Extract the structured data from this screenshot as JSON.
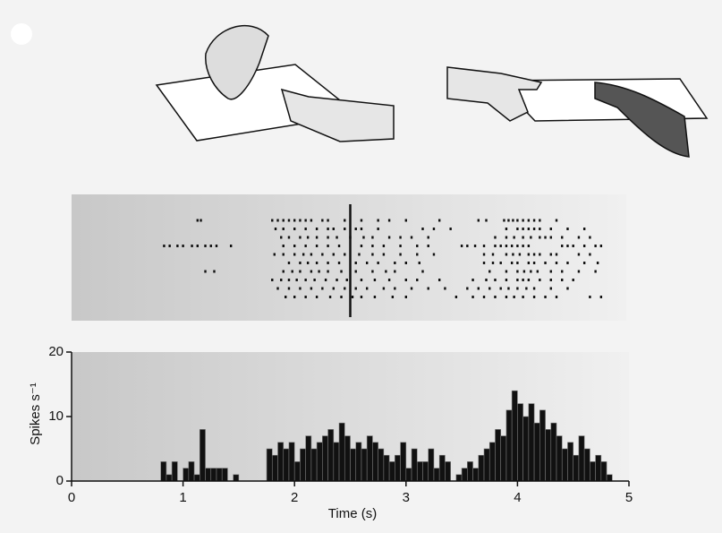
{
  "chart_data": [
    {
      "type": "raster",
      "xlim": [
        0,
        5
      ],
      "marker": 2.5,
      "trials": [
        [
          1.13,
          1.16,
          1.8,
          1.85,
          1.9,
          1.95,
          2.0,
          2.05,
          2.1,
          2.15,
          2.25,
          2.3,
          2.45,
          2.6,
          2.75,
          2.85,
          3.0,
          3.3,
          3.65,
          3.72,
          3.88,
          3.92,
          3.96,
          4.0,
          4.05,
          4.1,
          4.15,
          4.2,
          4.35
        ],
        [
          1.83,
          1.9,
          2.0,
          2.1,
          2.2,
          2.3,
          2.35,
          2.45,
          2.55,
          2.6,
          2.75,
          3.15,
          3.25,
          3.4,
          3.9,
          4.0,
          4.05,
          4.1,
          4.15,
          4.2,
          4.3,
          4.45,
          4.6
        ],
        [
          1.88,
          1.95,
          2.05,
          2.12,
          2.2,
          2.3,
          2.38,
          2.5,
          2.62,
          2.7,
          2.85,
          2.95,
          3.05,
          3.2,
          3.8,
          3.9,
          3.97,
          4.05,
          4.12,
          4.2,
          4.25,
          4.3,
          4.4,
          4.55,
          4.65
        ],
        [
          0.83,
          0.88,
          0.95,
          1.0,
          1.08,
          1.13,
          1.2,
          1.25,
          1.3,
          1.43,
          1.9,
          2.0,
          2.1,
          2.2,
          2.3,
          2.4,
          2.6,
          2.7,
          2.8,
          2.95,
          3.1,
          3.2,
          3.5,
          3.55,
          3.62,
          3.7,
          3.8,
          3.85,
          3.9,
          3.95,
          4.0,
          4.05,
          4.1,
          4.4,
          4.45,
          4.5,
          4.6,
          4.7,
          4.75
        ],
        [
          1.82,
          1.9,
          2.0,
          2.08,
          2.15,
          2.25,
          2.35,
          2.45,
          2.58,
          2.7,
          2.8,
          2.95,
          3.1,
          3.25,
          3.7,
          3.78,
          3.9,
          3.96,
          4.02,
          4.1,
          4.15,
          4.2,
          4.3,
          4.35,
          4.55,
          4.65
        ],
        [
          1.95,
          2.05,
          2.12,
          2.2,
          2.3,
          2.4,
          2.55,
          2.65,
          2.75,
          2.9,
          3.0,
          3.12,
          3.7,
          3.78,
          3.85,
          3.95,
          4.0,
          4.1,
          4.15,
          4.25,
          4.35,
          4.45,
          4.6,
          4.72
        ],
        [
          1.2,
          1.28,
          1.9,
          1.98,
          2.05,
          2.15,
          2.22,
          2.3,
          2.42,
          2.55,
          2.7,
          2.82,
          2.9,
          3.15,
          3.75,
          3.9,
          4.0,
          4.06,
          4.12,
          4.18,
          4.3,
          4.4,
          4.55,
          4.7
        ],
        [
          1.8,
          1.88,
          1.95,
          2.02,
          2.1,
          2.18,
          2.28,
          2.38,
          2.47,
          2.6,
          2.72,
          2.85,
          3.0,
          3.1,
          3.3,
          3.6,
          3.72,
          3.8,
          3.9,
          4.0,
          4.05,
          4.1,
          4.2,
          4.3,
          4.4,
          4.5
        ],
        [
          1.85,
          1.95,
          2.05,
          2.15,
          2.25,
          2.35,
          2.45,
          2.55,
          2.65,
          2.8,
          2.9,
          3.05,
          3.2,
          3.35,
          3.55,
          3.65,
          3.75,
          3.85,
          3.92,
          4.0,
          4.08,
          4.15,
          4.3,
          4.45
        ],
        [
          1.92,
          2.0,
          2.1,
          2.2,
          2.32,
          2.42,
          2.52,
          2.6,
          2.72,
          2.88,
          3.0,
          3.45,
          3.6,
          3.7,
          3.8,
          3.9,
          3.97,
          4.05,
          4.15,
          4.25,
          4.35,
          4.65,
          4.75
        ]
      ]
    },
    {
      "type": "histogram",
      "xlabel": "Time (s)",
      "ylabel": "Spikes s⁻¹",
      "xlim": [
        0,
        5
      ],
      "xticks": [
        0,
        1,
        2,
        3,
        4,
        5
      ],
      "ylim": [
        0,
        20
      ],
      "yticks": [
        0,
        10,
        20
      ],
      "color": "#111111",
      "bins": [
        0.8,
        0.85,
        0.9,
        0.95,
        1.0,
        1.05,
        1.1,
        1.15,
        1.2,
        1.25,
        1.3,
        1.35,
        1.4,
        1.45,
        1.5,
        1.55,
        1.6,
        1.65,
        1.7,
        1.75,
        1.8,
        1.85,
        1.9,
        1.95,
        2.0,
        2.05,
        2.1,
        2.15,
        2.2,
        2.25,
        2.3,
        2.35,
        2.4,
        2.45,
        2.5,
        2.55,
        2.6,
        2.65,
        2.7,
        2.75,
        2.8,
        2.85,
        2.9,
        2.95,
        3.0,
        3.05,
        3.1,
        3.15,
        3.2,
        3.25,
        3.3,
        3.35,
        3.4,
        3.45,
        3.5,
        3.55,
        3.6,
        3.65,
        3.7,
        3.75,
        3.8,
        3.85,
        3.9,
        3.95,
        4.0,
        4.05,
        4.1,
        4.15,
        4.2,
        4.25,
        4.3,
        4.35,
        4.4,
        4.45,
        4.5,
        4.55,
        4.6,
        4.65,
        4.7,
        4.75,
        4.8,
        4.85
      ],
      "values": [
        3,
        1,
        3,
        0,
        2,
        3,
        1,
        8,
        2,
        2,
        2,
        2,
        0,
        1,
        0,
        0,
        0,
        0,
        0,
        5,
        4,
        6,
        5,
        6,
        3,
        5,
        7,
        5,
        6,
        7,
        8,
        6,
        9,
        7,
        5,
        6,
        5,
        7,
        6,
        5,
        4,
        3,
        4,
        6,
        2,
        5,
        3,
        3,
        5,
        2,
        4,
        3,
        0,
        1,
        2,
        3,
        2,
        4,
        5,
        6,
        8,
        7,
        11,
        14,
        12,
        10,
        12,
        9,
        11,
        8,
        9,
        7,
        5,
        6,
        4,
        7,
        5,
        3,
        4,
        3,
        1
      ]
    }
  ]
}
